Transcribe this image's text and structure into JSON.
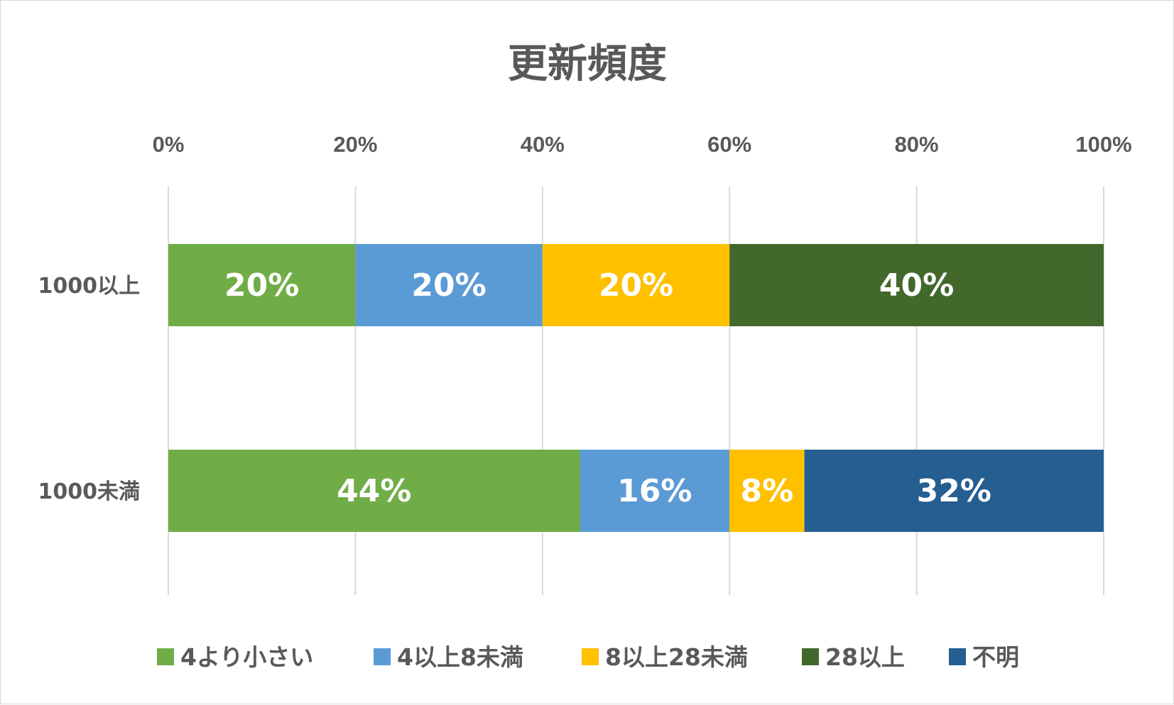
{
  "chart_data": {
    "type": "bar",
    "orientation": "horizontal",
    "stacked": "percent",
    "title": "更新頻度",
    "xlabel": "",
    "ylabel": "",
    "xlim": [
      0,
      100
    ],
    "x_ticks": [
      "0%",
      "20%",
      "40%",
      "60%",
      "80%",
      "100%"
    ],
    "categories": [
      "1000以上",
      "1000未満"
    ],
    "series": [
      {
        "name": "4より小さい",
        "color": "#70ad47",
        "values": [
          20,
          44
        ],
        "labels": [
          "20%",
          "44%"
        ]
      },
      {
        "name": "4以上8未満",
        "color": "#5b9bd5",
        "values": [
          20,
          16
        ],
        "labels": [
          "20%",
          "16%"
        ]
      },
      {
        "name": "8以上28未満",
        "color": "#ffc000",
        "values": [
          20,
          8
        ],
        "labels": [
          "20%",
          "8%"
        ]
      },
      {
        "name": "28以上",
        "color": "#43682b",
        "values": [
          40,
          0
        ],
        "labels": [
          "40%",
          ""
        ]
      },
      {
        "name": "不明",
        "color": "#255e91",
        "values": [
          0,
          32
        ],
        "labels": [
          "",
          "32%"
        ]
      }
    ],
    "grid": true,
    "legend": "bottom"
  }
}
